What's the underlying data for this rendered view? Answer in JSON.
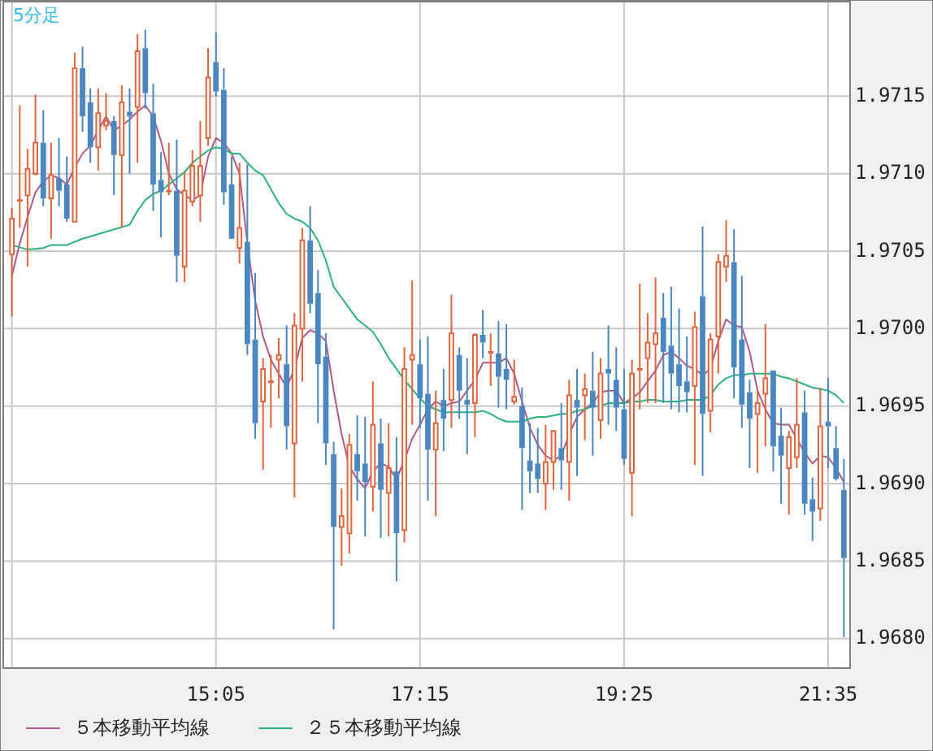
{
  "chart_data": {
    "type": "candlestick",
    "title": "5分足",
    "x": [
      12.9167,
      13,
      13.0833,
      13.1667,
      13.25,
      13.3333,
      13.4167,
      13.5,
      13.5833,
      13.6667,
      13.75,
      13.8333,
      13.9167,
      14,
      14.0833,
      14.1667,
      14.25,
      14.3333,
      14.4167,
      14.5,
      14.5833,
      14.6667,
      14.75,
      14.8333,
      14.9167,
      15,
      15.0833,
      15.1667,
      15.25,
      15.3333,
      15.4167,
      15.5,
      15.5833,
      15.6667,
      15.75,
      15.8333,
      15.9167,
      16,
      16.0833,
      16.1667,
      16.25,
      16.3333,
      16.4167,
      16.5,
      16.5833,
      16.6667,
      16.75,
      16.8333,
      16.9167,
      17,
      17.0833,
      17.1667,
      17.25,
      17.3333,
      17.4167,
      17.5,
      17.5833,
      17.6667,
      17.75,
      17.8333,
      17.9167,
      18,
      18.0833,
      18.1667,
      18.25,
      18.3333,
      18.4167,
      18.5,
      18.5833,
      18.6667,
      18.75,
      18.8333,
      18.9167,
      19,
      19.0833,
      19.1667,
      19.25,
      19.3333,
      19.4167,
      19.5,
      19.5833,
      19.6667,
      19.75,
      19.8333,
      19.9167,
      20,
      20.0833,
      20.1667,
      20.25,
      20.3333,
      20.4167,
      20.5,
      20.5833,
      20.6667,
      20.75,
      20.8333,
      20.9167,
      21,
      21.0833,
      21.1667,
      21.25,
      21.3333,
      21.4167,
      21.5,
      21.5833,
      21.6667,
      21.75
    ],
    "ohlc": [
      [
        1.97048,
        1.97078,
        1.97008,
        1.97071
      ],
      [
        1.97083,
        1.97144,
        1.97065,
        1.97083
      ],
      [
        1.97086,
        1.97116,
        1.9704,
        1.97103
      ],
      [
        1.971,
        1.97151,
        1.97099,
        1.9712
      ],
      [
        1.9712,
        1.97141,
        1.97079,
        1.97084
      ],
      [
        1.97084,
        1.9712,
        1.97058,
        1.97099
      ],
      [
        1.97097,
        1.97123,
        1.97079,
        1.97089
      ],
      [
        1.97093,
        1.97111,
        1.97069,
        1.97071
      ],
      [
        1.97069,
        1.97178,
        1.97069,
        1.97168
      ],
      [
        1.97168,
        1.97182,
        1.97127,
        1.97137
      ],
      [
        1.97146,
        1.97155,
        1.97107,
        1.97117
      ],
      [
        1.97117,
        1.97155,
        1.97102,
        1.97139
      ],
      [
        1.97131,
        1.97152,
        1.97128,
        1.97134
      ],
      [
        1.97134,
        1.97137,
        1.97086,
        1.97112
      ],
      [
        1.97112,
        1.97157,
        1.97065,
        1.97146
      ],
      [
        1.9714,
        1.97155,
        1.971,
        1.97137
      ],
      [
        1.97143,
        1.9719,
        1.97107,
        1.97179
      ],
      [
        1.97181,
        1.97193,
        1.97142,
        1.97152
      ],
      [
        1.97139,
        1.97158,
        1.97076,
        1.97093
      ],
      [
        1.97096,
        1.97114,
        1.97059,
        1.97088
      ],
      [
        1.97089,
        1.9712,
        1.97086,
        1.97089
      ],
      [
        1.97089,
        1.97122,
        1.9703,
        1.97047
      ],
      [
        1.9704,
        1.97101,
        1.9703,
        1.97089
      ],
      [
        1.97082,
        1.97115,
        1.97079,
        1.97105
      ],
      [
        1.97086,
        1.97134,
        1.97069,
        1.97105
      ],
      [
        1.97123,
        1.97181,
        1.97118,
        1.97162
      ],
      [
        1.97172,
        1.97191,
        1.9715,
        1.97153
      ],
      [
        1.97154,
        1.97168,
        1.9708,
        1.97088
      ],
      [
        1.97093,
        1.97111,
        1.97058,
        1.97058
      ],
      [
        1.97052,
        1.97107,
        1.97042,
        1.97065
      ],
      [
        1.97056,
        1.97106,
        1.96983,
        1.9699
      ],
      [
        1.96993,
        1.97036,
        1.96929,
        1.96939
      ],
      [
        1.96953,
        1.96981,
        1.96909,
        1.96974
      ],
      [
        1.96966,
        1.96983,
        1.96936,
        1.96966
      ],
      [
        1.9698,
        1.96994,
        1.96955,
        1.96983
      ],
      [
        1.96977,
        1.97002,
        1.96922,
        1.96937
      ],
      [
        1.96926,
        1.9701,
        1.96891,
        1.97002
      ],
      [
        1.97,
        1.97065,
        1.96966,
        1.97057
      ],
      [
        1.97057,
        1.97079,
        1.9701,
        1.97016
      ],
      [
        1.97023,
        1.97038,
        1.96939,
        1.96977
      ],
      [
        1.96982,
        1.96997,
        1.96912,
        1.96926
      ],
      [
        1.96919,
        1.96927,
        1.96806,
        1.96872
      ],
      [
        1.96872,
        1.96897,
        1.96847,
        1.96879
      ],
      [
        1.96868,
        1.96932,
        1.96855,
        1.96925
      ],
      [
        1.96919,
        1.96944,
        1.96889,
        1.96908
      ],
      [
        1.96913,
        1.96943,
        1.96866,
        1.96901
      ],
      [
        1.96898,
        1.96966,
        1.96882,
        1.96938
      ],
      [
        1.96926,
        1.96942,
        1.96865,
        1.96896
      ],
      [
        1.96894,
        1.96939,
        1.96866,
        1.9691
      ],
      [
        1.96908,
        1.9693,
        1.96837,
        1.96868
      ],
      [
        1.9687,
        1.96988,
        1.96862,
        1.96974
      ],
      [
        1.9698,
        1.97031,
        1.96938,
        1.96983
      ],
      [
        1.96977,
        1.96993,
        1.96936,
        1.96955
      ],
      [
        1.96958,
        1.96995,
        1.96889,
        1.96922
      ],
      [
        1.96922,
        1.9696,
        1.96879,
        1.96939
      ],
      [
        1.96954,
        1.96974,
        1.96921,
        1.96942
      ],
      [
        1.96954,
        1.97022,
        1.96936,
        1.96997
      ],
      [
        1.96983,
        1.96988,
        1.96942,
        1.9696
      ],
      [
        1.96954,
        1.96981,
        1.96919,
        1.96951
      ],
      [
        1.96952,
        1.96997,
        1.9693,
        1.96996
      ],
      [
        1.96996,
        1.97012,
        1.96981,
        1.96991
      ],
      [
        1.96985,
        1.96997,
        1.96963,
        1.96985
      ],
      [
        1.96984,
        1.97005,
        1.96949,
        1.96969
      ],
      [
        1.96974,
        1.97003,
        1.96948,
        1.96967
      ],
      [
        1.96953,
        1.9698,
        1.96951,
        1.96956
      ],
      [
        1.9695,
        1.96962,
        1.96883,
        1.96923
      ],
      [
        1.96915,
        1.96939,
        1.96894,
        1.96908
      ],
      [
        1.96913,
        1.96936,
        1.96894,
        1.96903
      ],
      [
        1.969,
        1.96938,
        1.96883,
        1.96914
      ],
      [
        1.96914,
        1.96934,
        1.96896,
        1.96934
      ],
      [
        1.96923,
        1.96952,
        1.96896,
        1.96915
      ],
      [
        1.96914,
        1.96967,
        1.96889,
        1.96957
      ],
      [
        1.96954,
        1.96974,
        1.96905,
        1.96949
      ],
      [
        1.96957,
        1.96971,
        1.96928,
        1.96961
      ],
      [
        1.9696,
        1.96985,
        1.96918,
        1.96949
      ],
      [
        1.96941,
        1.96981,
        1.96929,
        1.96971
      ],
      [
        1.96974,
        1.97002,
        1.96938,
        1.96971
      ],
      [
        1.96967,
        1.96988,
        1.96934,
        1.96949
      ],
      [
        1.96948,
        1.96974,
        1.96912,
        1.96916
      ],
      [
        1.96907,
        1.9698,
        1.96879,
        1.96971
      ],
      [
        1.96974,
        1.97029,
        1.96948,
        1.96974
      ],
      [
        1.96981,
        1.9701,
        1.96952,
        1.96991
      ],
      [
        1.9699,
        1.97033,
        1.96952,
        1.96997
      ],
      [
        1.97007,
        1.97023,
        1.96952,
        1.96985
      ],
      [
        1.96989,
        1.97027,
        1.96948,
        1.96971
      ],
      [
        1.96977,
        1.97013,
        1.96946,
        1.96963
      ],
      [
        1.96966,
        1.96995,
        1.96946,
        1.96959
      ],
      [
        1.96963,
        1.97011,
        1.96912,
        1.97001
      ],
      [
        1.97021,
        1.97066,
        1.96905,
        1.96945
      ],
      [
        1.96947,
        1.96997,
        1.96933,
        1.96993
      ],
      [
        1.96995,
        1.97048,
        1.96971,
        1.97043
      ],
      [
        1.9704,
        1.9707,
        1.9703,
        1.97047
      ],
      [
        1.97043,
        1.97064,
        1.96955,
        1.96975
      ],
      [
        1.96993,
        1.97034,
        1.96936,
        1.96951
      ],
      [
        1.96959,
        1.96967,
        1.9691,
        1.96942
      ],
      [
        1.96945,
        1.9696,
        1.96907,
        1.96952
      ],
      [
        1.96958,
        1.97003,
        1.96924,
        1.96968
      ],
      [
        1.96973,
        1.96973,
        1.96908,
        1.96924
      ],
      [
        1.96931,
        1.96949,
        1.96887,
        1.96918
      ],
      [
        1.9691,
        1.96934,
        1.9688,
        1.9693
      ],
      [
        1.96917,
        1.96968,
        1.9691,
        1.96938
      ],
      [
        1.96946,
        1.9696,
        1.9688,
        1.96887
      ],
      [
        1.9689,
        1.96904,
        1.96863,
        1.96882
      ],
      [
        1.96884,
        1.96962,
        1.96876,
        1.96937
      ],
      [
        1.9694,
        1.96968,
        1.9691,
        1.96937
      ],
      [
        1.96923,
        1.96937,
        1.96902,
        1.96903
      ],
      [
        1.96896,
        1.96916,
        1.96801,
        1.96852
      ]
    ],
    "colors": [
      "#e0643c",
      "#e0643c",
      "#e0643c",
      "#e0643c",
      "#4a86c0",
      "#e0643c",
      "#4a86c0",
      "#4a86c0",
      "#e0643c",
      "#4a86c0",
      "#4a86c0",
      "#e0643c",
      "#e0643c",
      "#4a86c0",
      "#e0643c",
      "#4a86c0",
      "#e0643c",
      "#4a86c0",
      "#4a86c0",
      "#4a86c0",
      "#e0643c",
      "#4a86c0",
      "#e0643c",
      "#e0643c",
      "#e0643c",
      "#e0643c",
      "#4a86c0",
      "#4a86c0",
      "#4a86c0",
      "#e0643c",
      "#4a86c0",
      "#4a86c0",
      "#e0643c",
      "#e0643c",
      "#e0643c",
      "#4a86c0",
      "#e0643c",
      "#e0643c",
      "#4a86c0",
      "#4a86c0",
      "#4a86c0",
      "#4a86c0",
      "#e0643c",
      "#e0643c",
      "#4a86c0",
      "#4a86c0",
      "#e0643c",
      "#4a86c0",
      "#e0643c",
      "#4a86c0",
      "#e0643c",
      "#e0643c",
      "#4a86c0",
      "#4a86c0",
      "#e0643c",
      "#4a86c0",
      "#e0643c",
      "#4a86c0",
      "#4a86c0",
      "#e0643c",
      "#4a86c0",
      "#e0643c",
      "#4a86c0",
      "#4a86c0",
      "#e0643c",
      "#4a86c0",
      "#4a86c0",
      "#4a86c0",
      "#e0643c",
      "#e0643c",
      "#4a86c0",
      "#e0643c",
      "#4a86c0",
      "#e0643c",
      "#4a86c0",
      "#e0643c",
      "#4a86c0",
      "#4a86c0",
      "#4a86c0",
      "#e0643c",
      "#e0643c",
      "#e0643c",
      "#e0643c",
      "#4a86c0",
      "#4a86c0",
      "#4a86c0",
      "#4a86c0",
      "#e0643c",
      "#4a86c0",
      "#e0643c",
      "#e0643c",
      "#e0643c",
      "#4a86c0",
      "#4a86c0",
      "#4a86c0",
      "#e0643c",
      "#e0643c",
      "#4a86c0",
      "#4a86c0",
      "#e0643c",
      "#e0643c",
      "#4a86c0",
      "#4a86c0",
      "#e0643c",
      "#4a86c0",
      "#4a86c0",
      "#4a86c0"
    ],
    "series": [
      {
        "name": "５本移動平均線",
        "type": "line",
        "color": "#b0588c",
        "x": [
          12.9167,
          13,
          13.0833,
          13.1667,
          13.25,
          13.3333,
          13.4167,
          13.5,
          13.5833,
          13.6667,
          13.75,
          13.8333,
          13.9167,
          14,
          14.0833,
          14.1667,
          14.25,
          14.3333,
          14.4167,
          14.5,
          14.5833,
          14.6667,
          14.75,
          14.8333,
          14.9167,
          15,
          15.0833,
          15.1667,
          15.25,
          15.3333,
          15.4167,
          15.5,
          15.5833,
          15.6667,
          15.75,
          15.8333,
          15.9167,
          16,
          16.0833,
          16.1667,
          16.25,
          16.3333,
          16.4167,
          16.5,
          16.5833,
          16.6667,
          16.75,
          16.8333,
          16.9167,
          17,
          17.0833,
          17.1667,
          17.25,
          17.3333,
          17.4167,
          17.5,
          17.5833,
          17.6667,
          17.75,
          17.8333,
          17.9167,
          18,
          18.0833,
          18.1667,
          18.25,
          18.3333,
          18.4167,
          18.5,
          18.5833,
          18.6667,
          18.75,
          18.8333,
          18.9167,
          19,
          19.0833,
          19.1667,
          19.25,
          19.3333,
          19.4167,
          19.5,
          19.5833,
          19.6667,
          19.75,
          19.8333,
          19.9167,
          20,
          20.0833,
          20.1667,
          20.25,
          20.3333,
          20.4167,
          20.5,
          20.5833,
          20.6667,
          20.75,
          20.8333,
          20.9167,
          21,
          21.0833,
          21.1667,
          21.25,
          21.3333,
          21.4167,
          21.5,
          21.5833,
          21.6667,
          21.75
        ],
        "values": [
          1.97034,
          1.97055,
          1.97072,
          1.97088,
          1.97095,
          1.97099,
          1.97097,
          1.97093,
          1.97104,
          1.97113,
          1.97118,
          1.97128,
          1.97137,
          1.97128,
          1.97131,
          1.97135,
          1.9714,
          1.97144,
          1.97137,
          1.97121,
          1.971,
          1.9709,
          1.97086,
          1.97083,
          1.97086,
          1.97111,
          1.97123,
          1.9712,
          1.97113,
          1.971,
          1.97055,
          1.97018,
          1.96995,
          1.9698,
          1.96971,
          1.96962,
          1.96974,
          1.96994,
          1.96999,
          1.96997,
          1.96992,
          1.9696,
          1.96932,
          1.96911,
          1.96903,
          1.96897,
          1.96908,
          1.96913,
          1.96911,
          1.96903,
          1.96915,
          1.96929,
          1.96938,
          1.96948,
          1.96953,
          1.9695,
          1.96952,
          1.96953,
          1.9696,
          1.96967,
          1.96978,
          1.96978,
          1.96978,
          1.96981,
          1.96971,
          1.96953,
          1.96936,
          1.96925,
          1.96918,
          1.96915,
          1.96918,
          1.96932,
          1.96943,
          1.96948,
          1.96952,
          1.96959,
          1.9696,
          1.9696,
          1.96952,
          1.96955,
          1.96959,
          1.96966,
          1.96973,
          1.96983,
          1.96985,
          1.96981,
          1.96976,
          1.96974,
          1.9697,
          1.96974,
          1.96992,
          1.97006,
          1.97002,
          1.97001,
          1.96985,
          1.9696,
          1.96948,
          1.96939,
          1.96938,
          1.96938,
          1.96929,
          1.9692,
          1.96913,
          1.96918,
          1.96917,
          1.9691,
          1.96901
        ]
      },
      {
        "name": "２５本移動平均線",
        "type": "line",
        "color": "#2ab47a",
        "x": [
          12.9167,
          13.0833,
          13.25,
          13.3333,
          13.5,
          13.6667,
          13.8333,
          14,
          14.1667,
          14.25,
          14.3333,
          14.4167,
          14.5,
          14.5833,
          14.6667,
          14.75,
          14.8333,
          14.9167,
          15,
          15.0833,
          15.1667,
          15.25,
          15.3333,
          15.4167,
          15.5,
          15.5833,
          15.6667,
          15.75,
          15.8333,
          15.9167,
          16,
          16.0833,
          16.1667,
          16.25,
          16.3333,
          16.4167,
          16.5,
          16.5833,
          16.6667,
          16.75,
          16.8333,
          16.9167,
          17,
          17.0833,
          17.1667,
          17.25,
          17.3333,
          17.4167,
          17.5,
          17.5833,
          17.6667,
          17.75,
          17.8333,
          17.9167,
          18,
          18.0833,
          18.1667,
          18.25,
          18.3333,
          18.4167,
          18.5,
          18.5833,
          18.6667,
          18.75,
          18.8333,
          18.9167,
          19,
          19.0833,
          19.1667,
          19.25,
          19.3333,
          19.4167,
          19.5,
          19.5833,
          19.6667,
          19.75,
          19.8333,
          19.9167,
          20,
          20.0833,
          20.1667,
          20.25,
          20.3333,
          20.4167,
          20.5,
          20.5833,
          20.6667,
          20.75,
          20.8333,
          20.9167,
          21,
          21.0833,
          21.1667,
          21.25,
          21.3333,
          21.4167,
          21.5,
          21.5833,
          21.6667,
          21.75
        ],
        "values": [
          1.97054,
          1.97051,
          1.97052,
          1.97054,
          1.97054,
          1.97058,
          1.97061,
          1.97064,
          1.97067,
          1.97076,
          1.97083,
          1.97087,
          1.97089,
          1.97093,
          1.97097,
          1.97101,
          1.97107,
          1.97111,
          1.97115,
          1.97117,
          1.97116,
          1.97113,
          1.97113,
          1.97107,
          1.97102,
          1.97099,
          1.9709,
          1.97081,
          1.97074,
          1.97071,
          1.97069,
          1.97065,
          1.97057,
          1.97044,
          1.97027,
          1.9702,
          1.97013,
          1.97006,
          1.97002,
          1.96998,
          1.9699,
          1.96981,
          1.96974,
          1.96967,
          1.96961,
          1.96955,
          1.9695,
          1.96948,
          1.96946,
          1.96946,
          1.96946,
          1.96946,
          1.96946,
          1.96947,
          1.96945,
          1.96942,
          1.9694,
          1.9694,
          1.9694,
          1.96942,
          1.96943,
          1.96943,
          1.96944,
          1.96945,
          1.96945,
          1.96947,
          1.96948,
          1.9695,
          1.9695,
          1.96952,
          1.96952,
          1.96952,
          1.96953,
          1.96953,
          1.96954,
          1.96954,
          1.96953,
          1.96953,
          1.96953,
          1.96954,
          1.96954,
          1.96954,
          1.96957,
          1.96964,
          1.96968,
          1.9697,
          1.9697,
          1.96971,
          1.96971,
          1.96971,
          1.96971,
          1.96969,
          1.96968,
          1.96966,
          1.96964,
          1.96962,
          1.96961,
          1.9696,
          1.96957,
          1.96952
        ]
      }
    ],
    "xlim": [
      12.825,
      21.816
    ],
    "ylim": [
      1.96781,
      1.97211
    ],
    "xticks": [
      {
        "value": 12.9167,
        "label": null
      },
      {
        "value": 15.0833,
        "label": "15:05"
      },
      {
        "value": 17.25,
        "label": "17:15"
      },
      {
        "value": 19.4167,
        "label": "19:25"
      },
      {
        "value": 21.5833,
        "label": "21:35"
      }
    ],
    "yticks": [
      {
        "value": 1.968,
        "label": "1.9680"
      },
      {
        "value": 1.9685,
        "label": "1.9685"
      },
      {
        "value": 1.969,
        "label": "1.9690"
      },
      {
        "value": 1.9695,
        "label": "1.9695"
      },
      {
        "value": 1.97,
        "label": "1.9700"
      },
      {
        "value": 1.9705,
        "label": "1.9705"
      },
      {
        "value": 1.971,
        "label": "1.9710"
      },
      {
        "value": 1.9715,
        "label": "1.9715"
      }
    ],
    "grid": true,
    "legend": "bottom left"
  }
}
